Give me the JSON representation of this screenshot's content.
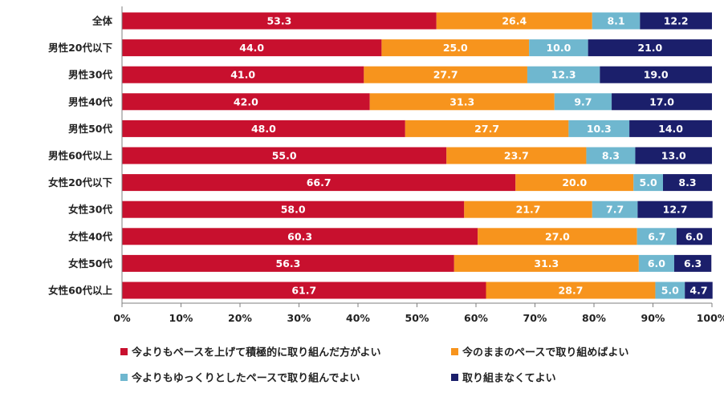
{
  "chart_data": {
    "type": "bar",
    "orientation": "horizontal",
    "stacked": true,
    "categories": [
      "全体",
      "男性20代以下",
      "男性30代",
      "男性40代",
      "男性50代",
      "男性60代以上",
      "女性20代以下",
      "女性30代",
      "女性40代",
      "女性50代",
      "女性60代以上"
    ],
    "series": [
      {
        "name": "今よりもペースを上げて積極的に取り組んだ方がよい",
        "color": "#c8102e",
        "values": [
          53.3,
          44.0,
          41.0,
          42.0,
          48.0,
          55.0,
          66.7,
          58.0,
          60.3,
          56.3,
          61.7
        ],
        "labels": [
          "53.3",
          "44.0",
          "41.0",
          "42.0",
          "48.0",
          "55.0",
          "66.7",
          "58.0",
          "60.3",
          "56.3",
          "61.7"
        ]
      },
      {
        "name": "今のままのペースで取り組めばよい",
        "color": "#f7941d",
        "values": [
          26.4,
          25.0,
          27.7,
          31.3,
          27.7,
          23.7,
          20.0,
          21.7,
          27.0,
          31.3,
          28.7
        ],
        "labels": [
          "26.4",
          "25.0",
          "27.7",
          "31.3",
          "27.7",
          "23.7",
          "20.0",
          "21.7",
          "27.0",
          "31.3",
          "28.7"
        ]
      },
      {
        "name": "今よりもゆっくりとしたペースで取り組んでよい",
        "color": "#6fb7cf",
        "values": [
          8.1,
          10.0,
          12.3,
          9.7,
          10.3,
          8.3,
          5.0,
          7.7,
          6.7,
          6.0,
          5.0
        ],
        "labels": [
          "8.1",
          "10.0",
          "12.3",
          "9.7",
          "10.3",
          "8.3",
          "5.0",
          "7.7",
          "6.7",
          "6.0",
          "5.0"
        ]
      },
      {
        "name": "取り組まなくてよい",
        "color": "#1b1f6b",
        "values": [
          12.2,
          21.0,
          19.0,
          17.0,
          14.0,
          13.0,
          8.3,
          12.7,
          6.0,
          6.3,
          4.7
        ],
        "labels": [
          "12.2",
          "21.0",
          "19.0",
          "17.0",
          "14.0",
          "13.0",
          "8.3",
          "12.7",
          "6.0",
          "6.3",
          "4.7"
        ]
      }
    ],
    "x_ticks": [
      "0%",
      "10%",
      "20%",
      "30%",
      "40%",
      "50%",
      "60%",
      "70%",
      "80%",
      "90%",
      "100%"
    ],
    "xlim": [
      0,
      100
    ],
    "title": "",
    "xlabel": "",
    "ylabel": "",
    "grid": false,
    "legend_position": "bottom"
  }
}
